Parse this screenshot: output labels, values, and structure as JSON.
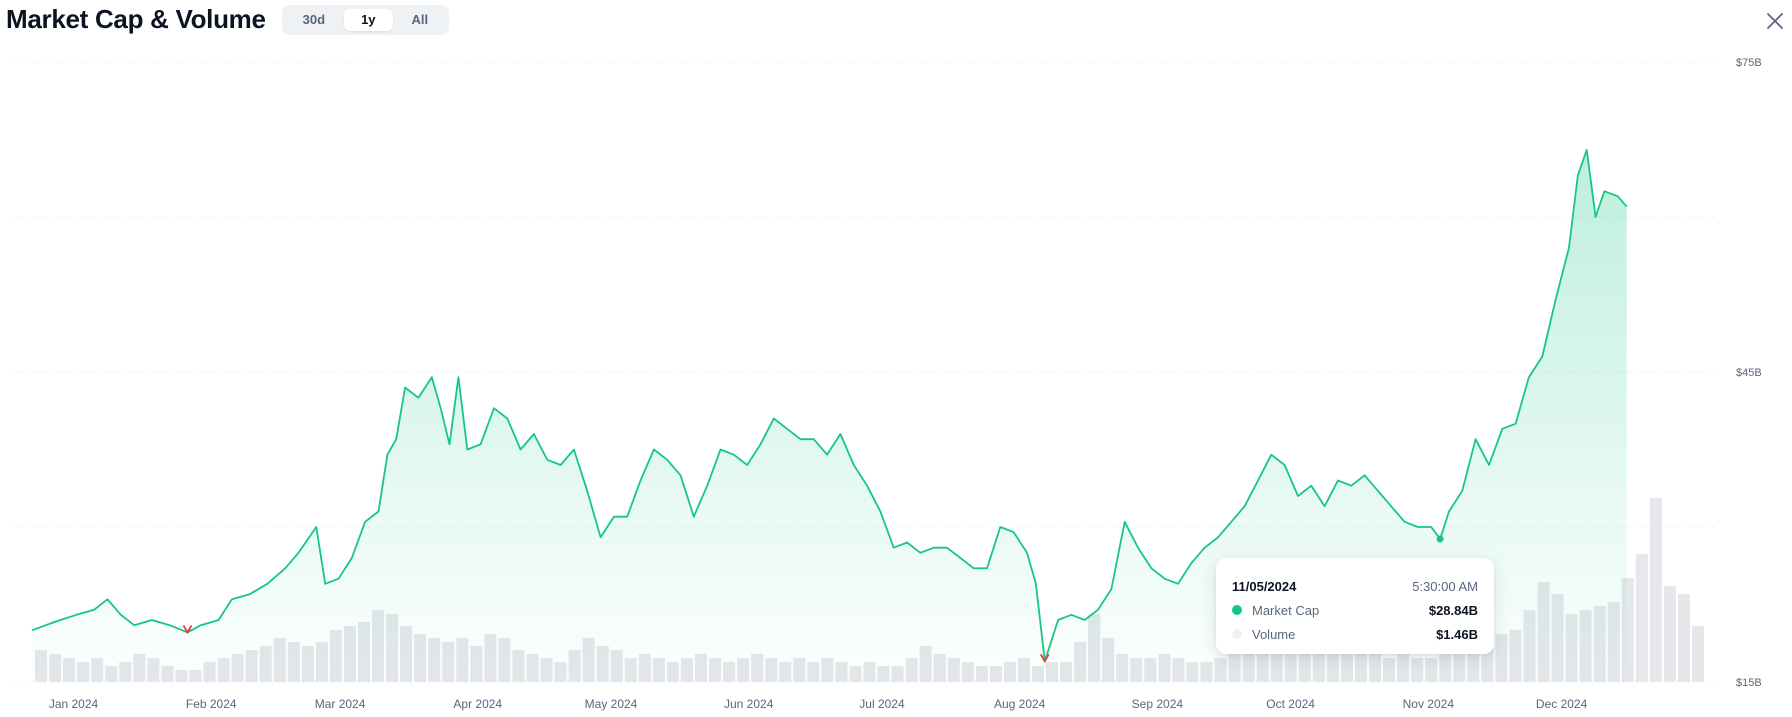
{
  "header": {
    "title": "Market Cap & Volume",
    "ranges": [
      {
        "label": "30d",
        "active": false
      },
      {
        "label": "1y",
        "active": true
      },
      {
        "label": "All",
        "active": false
      }
    ]
  },
  "colors": {
    "up": "#16c784",
    "down": "#ea3943",
    "volume": "#e5e7eb",
    "grid": "#eff2f5",
    "axis_text": "#58667e"
  },
  "tooltip": {
    "date": "11/05/2024",
    "time": "5:30:00 AM",
    "rows": [
      {
        "label": "Market Cap",
        "value": "$28.84B",
        "color": "#16c784"
      },
      {
        "label": "Volume",
        "value": "$1.46B",
        "color": "#eff2f5"
      }
    ]
  },
  "chart_data": {
    "type": "area",
    "title": "",
    "xlabel": "",
    "ylabel": "",
    "x_ticks": [
      "Jan 2024",
      "Feb 2024",
      "Mar 2024",
      "Apr 2024",
      "May 2024",
      "Jun 2024",
      "Jul 2024",
      "Aug 2024",
      "Sep 2024",
      "Oct 2024",
      "Nov 2024",
      "Dec 2024"
    ],
    "y_ticks": [
      "$75B",
      "$45B",
      "$15B"
    ],
    "ylim": [
      15,
      75
    ],
    "y_unit": "billion USD",
    "grid": true,
    "highlight_point": {
      "date": "2024-11-05",
      "value": 28.84
    },
    "series": [
      {
        "name": "Market Cap",
        "points": [
          [
            "2023-12-24",
            20.0
          ],
          [
            "2023-12-29",
            20.8
          ],
          [
            "2024-01-03",
            21.5
          ],
          [
            "2024-01-07",
            22.0
          ],
          [
            "2024-01-10",
            23.0
          ],
          [
            "2024-01-13",
            21.5
          ],
          [
            "2024-01-16",
            20.5
          ],
          [
            "2024-01-20",
            21.0
          ],
          [
            "2024-01-24",
            20.5
          ],
          [
            "2024-01-28",
            19.8
          ],
          [
            "2024-01-31",
            20.5
          ],
          [
            "2024-02-04",
            21.0
          ],
          [
            "2024-02-07",
            23.0
          ],
          [
            "2024-02-11",
            23.5
          ],
          [
            "2024-02-15",
            24.5
          ],
          [
            "2024-02-19",
            26.0
          ],
          [
            "2024-02-22",
            27.5
          ],
          [
            "2024-02-26",
            30.0
          ],
          [
            "2024-02-28",
            24.5
          ],
          [
            "2024-03-02",
            25.0
          ],
          [
            "2024-03-05",
            27.0
          ],
          [
            "2024-03-08",
            30.5
          ],
          [
            "2024-03-11",
            31.5
          ],
          [
            "2024-03-13",
            37.0
          ],
          [
            "2024-03-15",
            38.5
          ],
          [
            "2024-03-17",
            43.5
          ],
          [
            "2024-03-20",
            42.5
          ],
          [
            "2024-03-23",
            44.5
          ],
          [
            "2024-03-25",
            41.5
          ],
          [
            "2024-03-27",
            38.0
          ],
          [
            "2024-03-29",
            44.5
          ],
          [
            "2024-03-31",
            37.5
          ],
          [
            "2024-04-03",
            38.0
          ],
          [
            "2024-04-06",
            41.5
          ],
          [
            "2024-04-09",
            40.5
          ],
          [
            "2024-04-12",
            37.5
          ],
          [
            "2024-04-15",
            39.0
          ],
          [
            "2024-04-18",
            36.5
          ],
          [
            "2024-04-21",
            36.0
          ],
          [
            "2024-04-24",
            37.5
          ],
          [
            "2024-04-27",
            33.5
          ],
          [
            "2024-04-30",
            29.0
          ],
          [
            "2024-05-03",
            31.0
          ],
          [
            "2024-05-06",
            31.0
          ],
          [
            "2024-05-09",
            34.5
          ],
          [
            "2024-05-12",
            37.5
          ],
          [
            "2024-05-15",
            36.5
          ],
          [
            "2024-05-18",
            35.0
          ],
          [
            "2024-05-21",
            31.0
          ],
          [
            "2024-05-24",
            34.0
          ],
          [
            "2024-05-27",
            37.5
          ],
          [
            "2024-05-30",
            37.0
          ],
          [
            "2024-06-02",
            36.0
          ],
          [
            "2024-06-05",
            38.0
          ],
          [
            "2024-06-08",
            40.5
          ],
          [
            "2024-06-11",
            39.5
          ],
          [
            "2024-06-14",
            38.5
          ],
          [
            "2024-06-17",
            38.5
          ],
          [
            "2024-06-20",
            37.0
          ],
          [
            "2024-06-23",
            39.0
          ],
          [
            "2024-06-26",
            36.0
          ],
          [
            "2024-06-29",
            34.0
          ],
          [
            "2024-07-02",
            31.5
          ],
          [
            "2024-07-05",
            28.0
          ],
          [
            "2024-07-08",
            28.5
          ],
          [
            "2024-07-11",
            27.5
          ],
          [
            "2024-07-14",
            28.0
          ],
          [
            "2024-07-17",
            28.0
          ],
          [
            "2024-07-20",
            27.0
          ],
          [
            "2024-07-23",
            26.0
          ],
          [
            "2024-07-26",
            26.0
          ],
          [
            "2024-07-29",
            30.0
          ],
          [
            "2024-08-01",
            29.5
          ],
          [
            "2024-08-04",
            27.5
          ],
          [
            "2024-08-06",
            24.5
          ],
          [
            "2024-08-08",
            17.0
          ],
          [
            "2024-08-11",
            21.0
          ],
          [
            "2024-08-14",
            21.5
          ],
          [
            "2024-08-17",
            21.0
          ],
          [
            "2024-08-20",
            22.0
          ],
          [
            "2024-08-23",
            24.0
          ],
          [
            "2024-08-26",
            30.5
          ],
          [
            "2024-08-29",
            28.0
          ],
          [
            "2024-09-01",
            26.0
          ],
          [
            "2024-09-04",
            25.0
          ],
          [
            "2024-09-07",
            24.5
          ],
          [
            "2024-09-10",
            26.5
          ],
          [
            "2024-09-13",
            28.0
          ],
          [
            "2024-09-16",
            29.0
          ],
          [
            "2024-09-19",
            30.5
          ],
          [
            "2024-09-22",
            32.0
          ],
          [
            "2024-09-25",
            34.5
          ],
          [
            "2024-09-28",
            37.0
          ],
          [
            "2024-10-01",
            36.0
          ],
          [
            "2024-10-04",
            33.0
          ],
          [
            "2024-10-07",
            34.0
          ],
          [
            "2024-10-10",
            32.0
          ],
          [
            "2024-10-13",
            34.5
          ],
          [
            "2024-10-16",
            34.0
          ],
          [
            "2024-10-19",
            35.0
          ],
          [
            "2024-10-22",
            33.5
          ],
          [
            "2024-10-25",
            32.0
          ],
          [
            "2024-10-28",
            30.5
          ],
          [
            "2024-10-31",
            30.0
          ],
          [
            "2024-11-03",
            30.0
          ],
          [
            "2024-11-05",
            28.84
          ],
          [
            "2024-11-07",
            31.5
          ],
          [
            "2024-11-10",
            33.5
          ],
          [
            "2024-11-13",
            38.5
          ],
          [
            "2024-11-16",
            36.0
          ],
          [
            "2024-11-19",
            39.5
          ],
          [
            "2024-11-22",
            40.0
          ],
          [
            "2024-11-25",
            44.5
          ],
          [
            "2024-11-28",
            46.5
          ],
          [
            "2024-12-01",
            52.0
          ],
          [
            "2024-12-04",
            57.0
          ],
          [
            "2024-12-06",
            64.0
          ],
          [
            "2024-12-08",
            66.5
          ],
          [
            "2024-12-10",
            60.0
          ],
          [
            "2024-12-12",
            62.5
          ],
          [
            "2024-12-15",
            62.0
          ],
          [
            "2024-12-17",
            61.0
          ]
        ]
      },
      {
        "name": "Volume",
        "scale_note": "relative bar heights as drawn",
        "values": [
          0.4,
          0.35,
          0.3,
          0.25,
          0.3,
          0.2,
          0.25,
          0.35,
          0.3,
          0.2,
          0.15,
          0.15,
          0.25,
          0.3,
          0.35,
          0.4,
          0.45,
          0.55,
          0.5,
          0.45,
          0.5,
          0.65,
          0.7,
          0.75,
          0.9,
          0.85,
          0.7,
          0.6,
          0.55,
          0.5,
          0.55,
          0.45,
          0.6,
          0.55,
          0.4,
          0.35,
          0.3,
          0.25,
          0.4,
          0.55,
          0.45,
          0.4,
          0.3,
          0.35,
          0.3,
          0.25,
          0.3,
          0.35,
          0.3,
          0.25,
          0.3,
          0.35,
          0.3,
          0.25,
          0.3,
          0.25,
          0.3,
          0.25,
          0.2,
          0.25,
          0.2,
          0.2,
          0.3,
          0.45,
          0.35,
          0.3,
          0.25,
          0.2,
          0.2,
          0.25,
          0.3,
          0.2,
          0.25,
          0.25,
          0.5,
          0.85,
          0.55,
          0.35,
          0.3,
          0.3,
          0.35,
          0.3,
          0.25,
          0.25,
          0.3,
          0.35,
          0.4,
          0.4,
          0.45,
          0.5,
          0.5,
          0.45,
          0.4,
          0.35,
          0.35,
          0.35,
          0.3,
          0.35,
          0.3,
          0.3,
          0.35,
          0.35,
          0.4,
          0.55,
          0.6,
          0.65,
          0.9,
          1.25,
          1.1,
          0.85,
          0.9,
          0.95,
          1.0,
          1.3,
          1.6,
          2.3,
          1.2,
          1.1,
          0.7
        ]
      }
    ]
  }
}
